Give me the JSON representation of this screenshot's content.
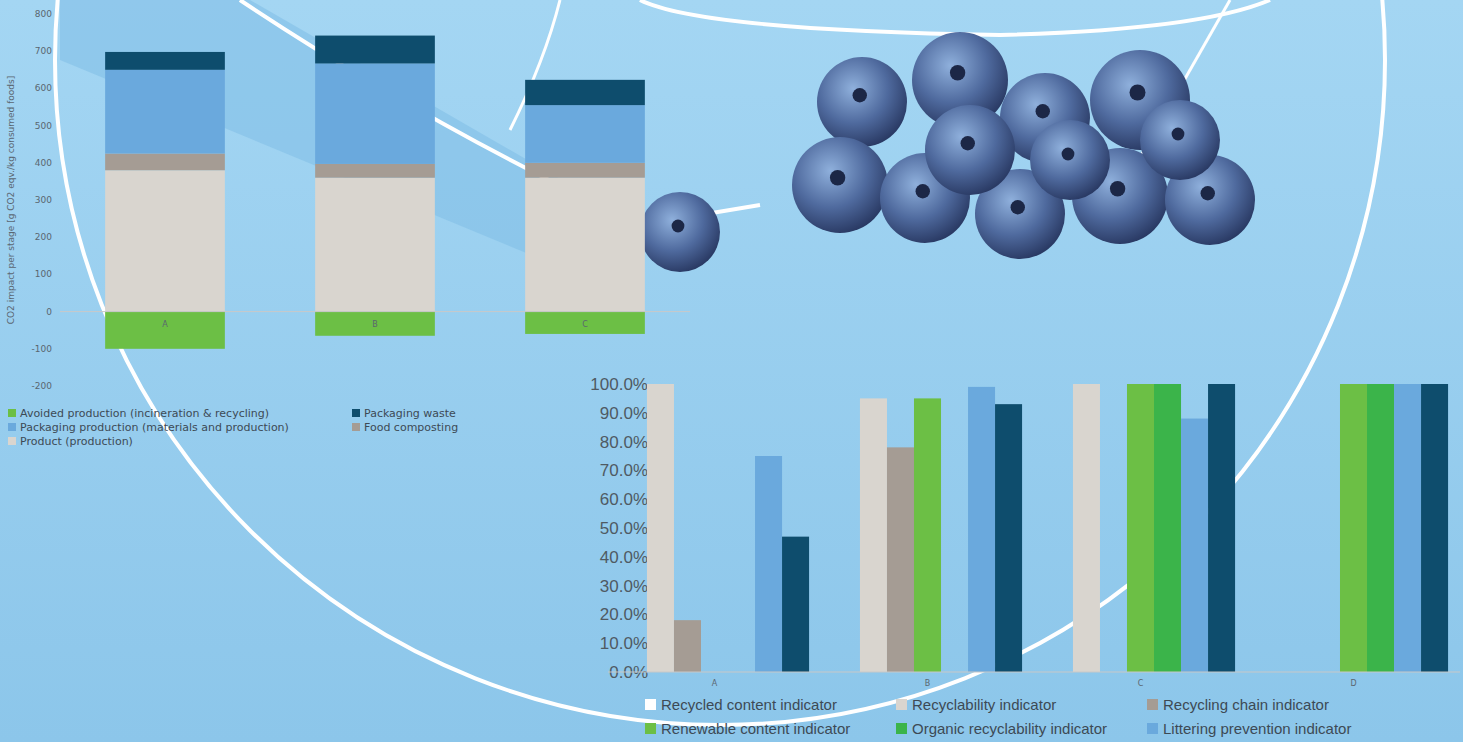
{
  "chart_data": [
    {
      "type": "bar",
      "stacked": true,
      "y_label": "CO2 impact per stage [g CO2 eqv./kg consumed foods]",
      "categories": [
        "A",
        "B",
        "C"
      ],
      "series": [
        {
          "name": "Avoided production (incineration & recycling)",
          "color": "#6cbf45",
          "values": [
            -100,
            -65,
            -60
          ]
        },
        {
          "name": "Packaging waste",
          "color": "#0e4d6d",
          "values": [
            48,
            75,
            68
          ]
        },
        {
          "name": "Packaging production (materials and production)",
          "color": "#6aa9dd",
          "values": [
            225,
            270,
            155
          ]
        },
        {
          "name": "Food composting",
          "color": "#a59c94",
          "values": [
            45,
            37,
            40
          ]
        },
        {
          "name": "Product (production)",
          "color": "#d9d5cf",
          "values": [
            380,
            360,
            360
          ]
        }
      ],
      "ylim": [
        -200,
        800
      ],
      "yticks": [
        -200,
        -100,
        0,
        100,
        200,
        300,
        400,
        500,
        600,
        700,
        800
      ],
      "grid": false,
      "legend": "bottom"
    },
    {
      "type": "bar",
      "categories": [
        "A",
        "B",
        "C",
        "D"
      ],
      "series": [
        {
          "name": "Recycled content indicator",
          "color": "#ffffff",
          "values": [
            0,
            0,
            0,
            0
          ]
        },
        {
          "name": "Recyclability indicator",
          "color": "#d9d5cf",
          "values": [
            100,
            95,
            100,
            0
          ]
        },
        {
          "name": "Recycling chain indicator",
          "color": "#a59c94",
          "values": [
            18,
            78,
            0,
            0
          ]
        },
        {
          "name": "Renewable content indicator",
          "color": "#6cbf45",
          "values": [
            0,
            95,
            100,
            100
          ]
        },
        {
          "name": "Organic recyclability indicator",
          "color": "#3bb44a",
          "values": [
            0,
            0,
            100,
            100
          ]
        },
        {
          "name": "Littering prevention indicator",
          "color": "#6aa9dd",
          "values": [
            75,
            99,
            88,
            100
          ]
        },
        {
          "color": "#0e4d6d",
          "values": [
            47,
            93,
            100,
            100
          ]
        }
      ],
      "ylim": [
        0,
        100
      ],
      "yticks": [
        {
          "value": 0,
          "label": "0.0%"
        },
        {
          "value": 10,
          "label": "10.0%"
        },
        {
          "value": 20,
          "label": "20.0%"
        },
        {
          "value": 30,
          "label": "30.0%"
        },
        {
          "value": 40,
          "label": "40.0%"
        },
        {
          "value": 50,
          "label": "50.0%"
        },
        {
          "value": 60,
          "label": "60.0%"
        },
        {
          "value": 70,
          "label": "70.0%"
        },
        {
          "value": 80,
          "label": "80.0%"
        },
        {
          "value": 90,
          "label": "90.0%"
        },
        {
          "value": 100,
          "label": "100.0%"
        }
      ],
      "grid": false,
      "legend": "bottom"
    }
  ]
}
